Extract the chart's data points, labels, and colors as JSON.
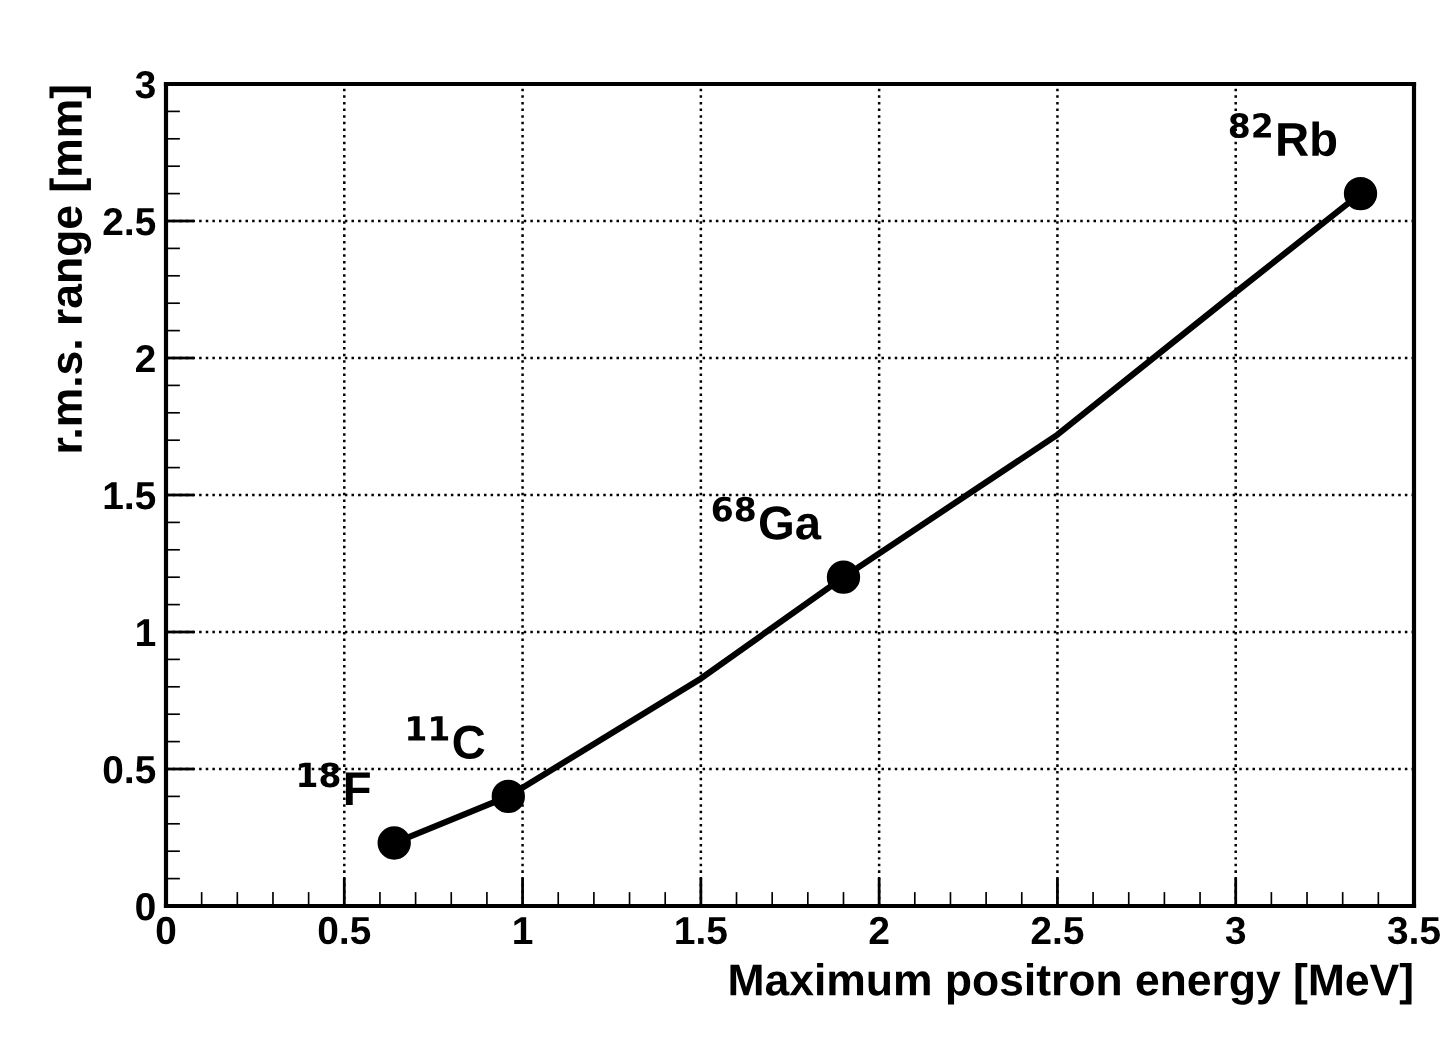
{
  "chart_data": {
    "type": "scatter",
    "xlabel": "Maximum positron energy [MeV]",
    "ylabel": "r.m.s. range [mm]",
    "xlim": [
      0,
      3.5
    ],
    "xticks": [
      0,
      0.5,
      1,
      1.5,
      2,
      2.5,
      3,
      3.5
    ],
    "ylim": [
      0,
      3
    ],
    "yticks": [
      0,
      0.5,
      1,
      1.5,
      2,
      2.5,
      3
    ],
    "grid": true,
    "marker": "circle",
    "series": [
      {
        "type": "line",
        "color": "#000000",
        "x": [
          0.64,
          0.96,
          1.5,
          1.9,
          2.5,
          3.0,
          3.35
        ],
        "values": [
          0.23,
          0.4,
          0.83,
          1.2,
          1.72,
          2.24,
          2.6
        ],
        "marker": "none"
      },
      {
        "color": "#000000",
        "x": [
          0.64,
          0.96,
          1.9,
          3.35
        ],
        "values": [
          0.23,
          0.4,
          1.2,
          2.6
        ]
      }
    ],
    "annotations": [
      {
        "text": "$^{18}$F",
        "x": 0.64,
        "y": 0.23
      },
      {
        "text": "$^{11}$C",
        "x": 0.96,
        "y": 0.4
      },
      {
        "text": "$^{68}$Ga",
        "x": 1.9,
        "y": 1.2
      },
      {
        "text": "$^{82}$Rb",
        "x": 3.35,
        "y": 2.6
      }
    ]
  }
}
